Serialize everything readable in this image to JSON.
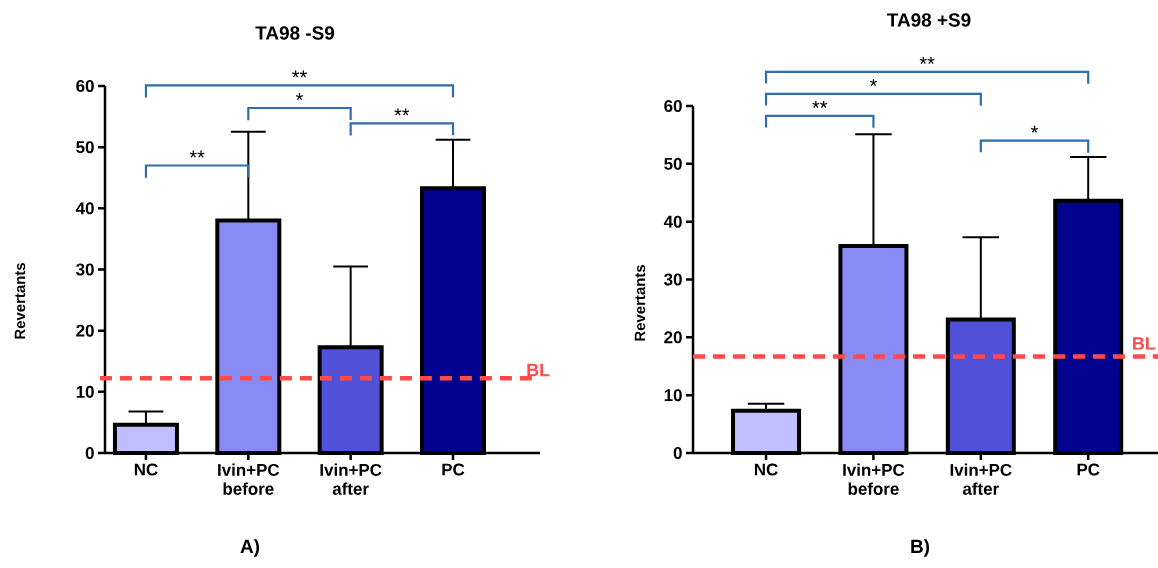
{
  "chart_data": [
    {
      "type": "bar",
      "title": "TA98  -S9",
      "ylabel": "Revertants",
      "categories": [
        "NC",
        "Ivin+PC before",
        "Ivin+PC after",
        "PC"
      ],
      "values": [
        4.6,
        38,
        17.3,
        43.3
      ],
      "colors": [
        "#bfbfff",
        "#8a8af5",
        "#5050d8",
        "#02028f"
      ],
      "errors": [
        [
          4.6,
          6.8
        ],
        [
          38,
          52.5
        ],
        [
          17.3,
          30.5
        ],
        [
          43.3,
          51.2
        ]
      ],
      "ylim": [
        0,
        60
      ],
      "yticks": [
        0,
        10,
        20,
        30,
        40,
        50,
        60
      ],
      "ref_lines": [
        {
          "axis": "y",
          "value": 12.2,
          "label": "BL",
          "color": "#ff4a4a",
          "line_style": "dashed"
        }
      ],
      "annotations": [
        "A)",
        "**",
        "*",
        "**",
        "**"
      ]
    },
    {
      "type": "bar",
      "title": "TA98  +S9",
      "ylabel": "Revertants",
      "categories": [
        "NC",
        "Ivin+PC before",
        "Ivin+PC after",
        "PC"
      ],
      "values": [
        7.3,
        35.8,
        23.1,
        43.6
      ],
      "colors": [
        "#bfbfff",
        "#8a8af5",
        "#5050d8",
        "#02028f"
      ],
      "errors": [
        [
          7.3,
          8.5
        ],
        [
          35.8,
          55.1
        ],
        [
          23.1,
          37.3
        ],
        [
          43.6,
          51.2
        ]
      ],
      "ylim": [
        0,
        60
      ],
      "yticks": [
        0,
        10,
        20,
        30,
        40,
        50,
        60
      ],
      "ref_lines": [
        {
          "axis": "y",
          "value": 16.7,
          "label": "BL",
          "color": "#ff4a4a",
          "line_style": "dashed"
        }
      ],
      "annotations": [
        "B)",
        "**",
        "*",
        "**",
        "*"
      ]
    }
  ]
}
